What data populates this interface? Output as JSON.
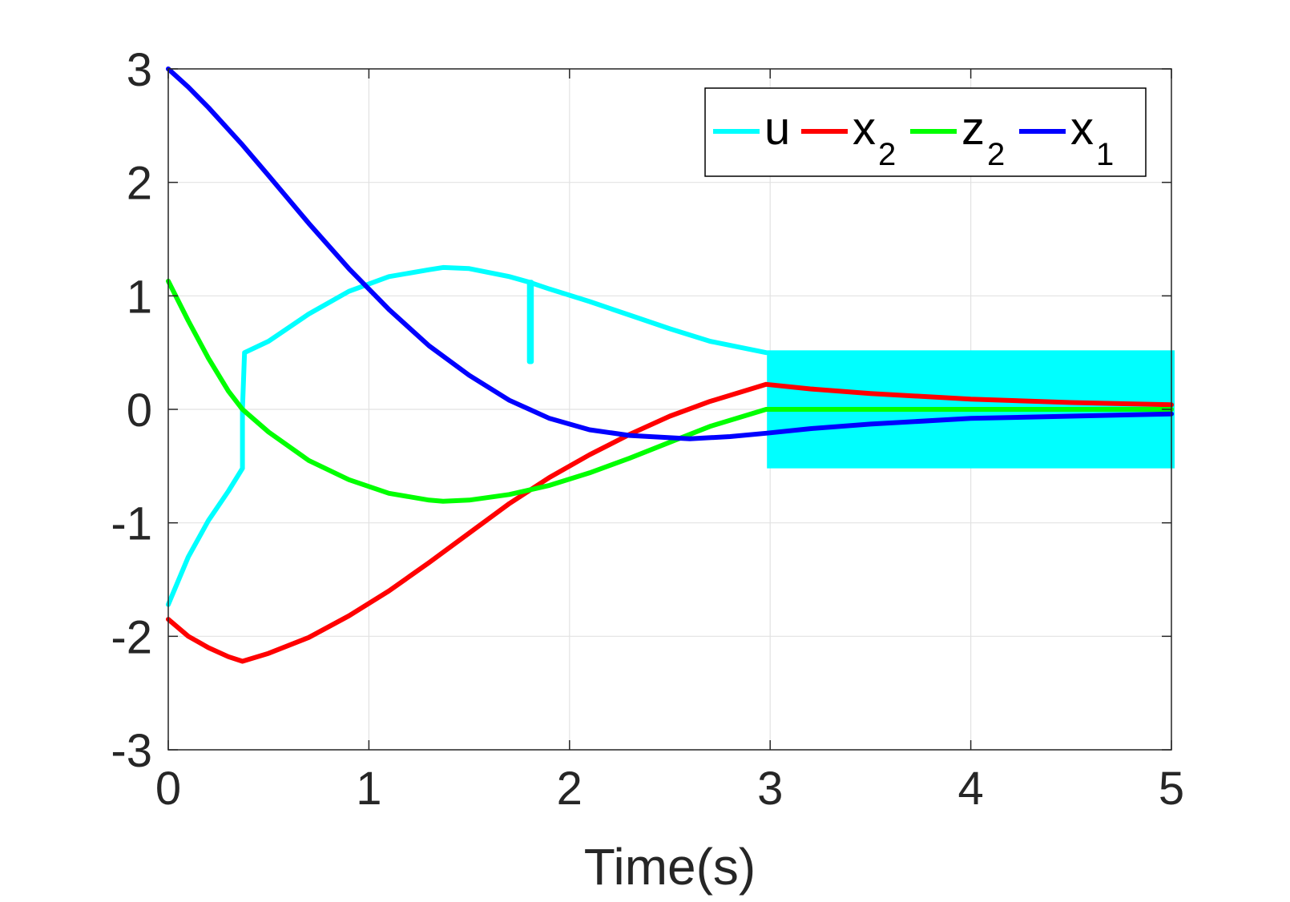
{
  "chart_data": {
    "type": "line",
    "title": "",
    "xlabel": "Time(s)",
    "ylabel": "",
    "xlim": [
      0,
      5
    ],
    "ylim": [
      -3,
      3
    ],
    "x_ticks": [
      0,
      1,
      2,
      3,
      4,
      5
    ],
    "y_ticks": [
      -3,
      -2,
      -1,
      0,
      1,
      2,
      3
    ],
    "grid": true,
    "legend_position": "top-right",
    "legend_orientation": "horizontal",
    "series": [
      {
        "name": "u",
        "label_base": "u",
        "label_sub": "",
        "color": "#00ffff",
        "x": [
          0,
          0.1,
          0.2,
          0.3,
          0.37,
          0.37,
          0.38,
          0.5,
          0.7,
          0.9,
          1.1,
          1.3,
          1.37,
          1.5,
          1.7,
          1.8,
          1.8,
          1.81,
          1.81,
          1.8,
          1.9,
          2.1,
          2.3,
          2.5,
          2.7,
          2.98
        ],
        "y": [
          -1.72,
          -1.3,
          -0.98,
          -0.72,
          -0.52,
          0,
          0.5,
          0.6,
          0.84,
          1.04,
          1.17,
          1.23,
          1.25,
          1.24,
          1.17,
          1.12,
          0.42,
          0.42,
          1.12,
          1.12,
          1.06,
          0.95,
          0.83,
          0.71,
          0.6,
          0.5
        ],
        "chattering_band": {
          "x_start": 3.0,
          "x_end": 5.0,
          "lower": -0.52,
          "upper": 0.52
        }
      },
      {
        "name": "x_2",
        "label_base": "x",
        "label_sub": "2",
        "color": "#ff0000",
        "x": [
          0,
          0.1,
          0.2,
          0.3,
          0.37,
          0.5,
          0.7,
          0.9,
          1.1,
          1.3,
          1.5,
          1.7,
          1.9,
          2.1,
          2.3,
          2.5,
          2.7,
          2.98,
          3.2,
          3.5,
          4.0,
          4.5,
          5.0
        ],
        "y": [
          -1.85,
          -2.0,
          -2.1,
          -2.18,
          -2.22,
          -2.15,
          -2.01,
          -1.82,
          -1.6,
          -1.35,
          -1.09,
          -0.83,
          -0.6,
          -0.4,
          -0.22,
          -0.06,
          0.07,
          0.22,
          0.18,
          0.14,
          0.09,
          0.06,
          0.04
        ]
      },
      {
        "name": "z_2",
        "label_base": "z",
        "label_sub": "2",
        "color": "#00ff00",
        "x": [
          0,
          0.1,
          0.2,
          0.3,
          0.37,
          0.5,
          0.7,
          0.9,
          1.1,
          1.3,
          1.37,
          1.5,
          1.7,
          1.9,
          2.1,
          2.3,
          2.5,
          2.7,
          2.98,
          3.5,
          4.0,
          4.5,
          5.0
        ],
        "y": [
          1.13,
          0.78,
          0.45,
          0.16,
          0.0,
          -0.2,
          -0.45,
          -0.62,
          -0.74,
          -0.8,
          -0.81,
          -0.8,
          -0.75,
          -0.67,
          -0.56,
          -0.43,
          -0.29,
          -0.15,
          0.0,
          0.0,
          0.0,
          0.0,
          0.0
        ]
      },
      {
        "name": "x_1",
        "label_base": "x",
        "label_sub": "1",
        "color": "#0000ff",
        "x": [
          0,
          0.1,
          0.2,
          0.37,
          0.5,
          0.7,
          0.9,
          1.1,
          1.3,
          1.5,
          1.7,
          1.9,
          2.1,
          2.3,
          2.5,
          2.6,
          2.8,
          2.98,
          3.2,
          3.5,
          4.0,
          4.5,
          5.0
        ],
        "y": [
          3.0,
          2.84,
          2.66,
          2.33,
          2.06,
          1.64,
          1.24,
          0.88,
          0.56,
          0.3,
          0.08,
          -0.08,
          -0.18,
          -0.23,
          -0.25,
          -0.26,
          -0.24,
          -0.21,
          -0.17,
          -0.13,
          -0.08,
          -0.06,
          -0.04
        ]
      }
    ]
  },
  "colors": {
    "axis": "#262626",
    "grid": "#e2e2e2",
    "background": "#ffffff"
  }
}
